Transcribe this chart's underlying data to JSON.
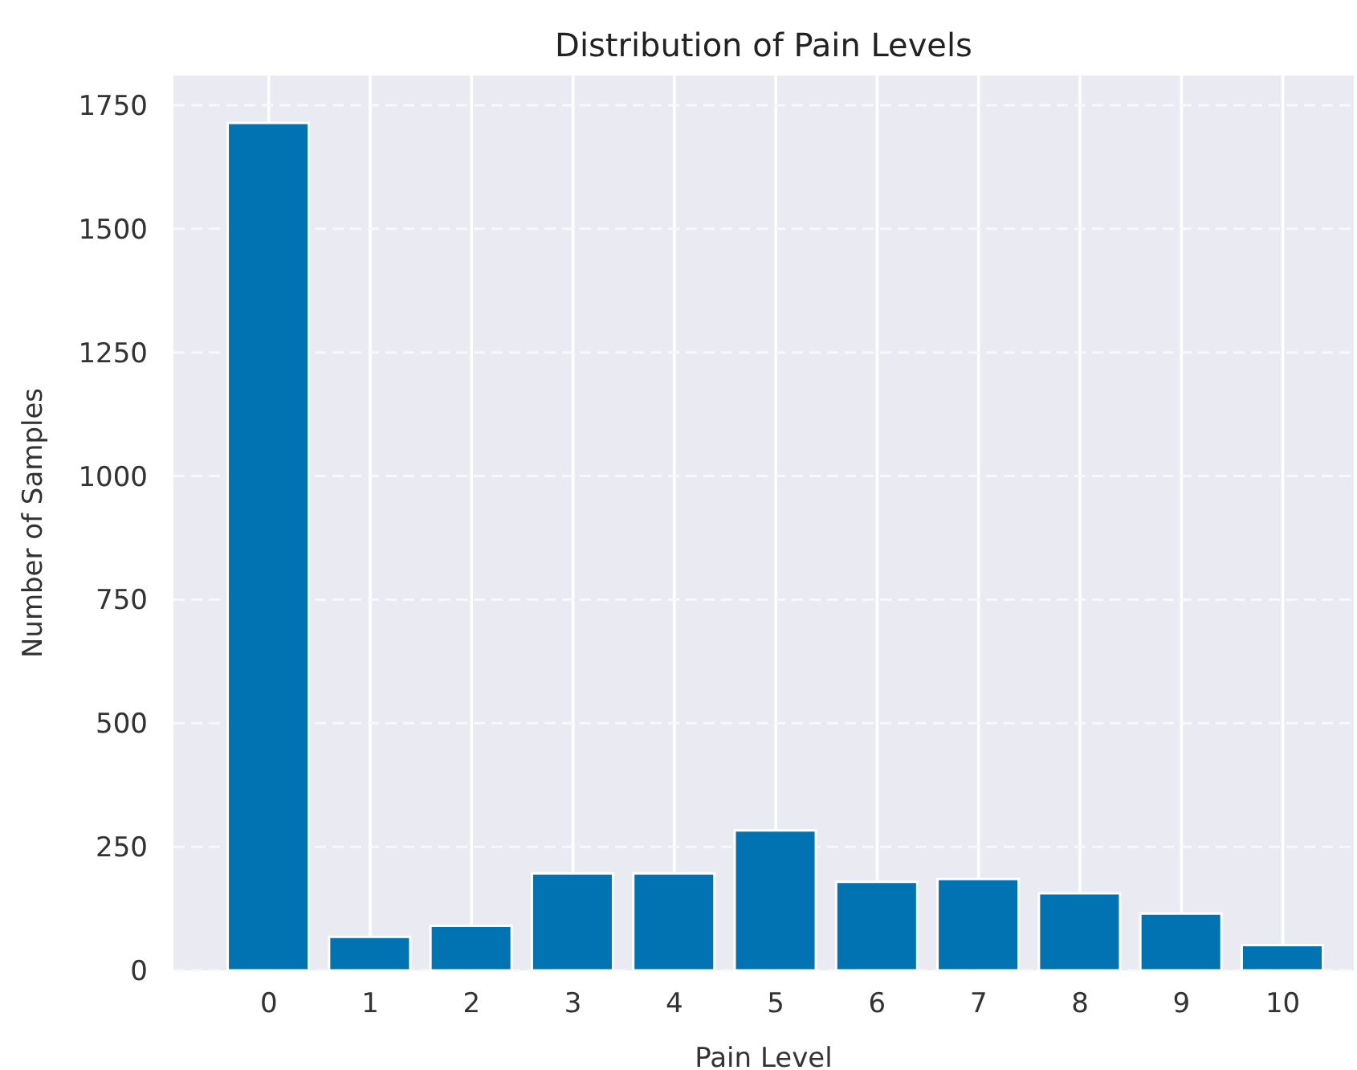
{
  "chart_data": {
    "type": "bar",
    "title": "Distribution of Pain Levels",
    "xlabel": "Pain Level",
    "ylabel": "Number of Samples",
    "x": [
      0,
      1,
      2,
      3,
      4,
      5,
      6,
      7,
      8,
      9,
      10
    ],
    "values": [
      1714,
      68,
      90,
      196,
      196,
      283,
      179,
      185,
      156,
      115,
      51
    ],
    "color": "#0173b2",
    "xlim": [
      -0.94,
      10.7
    ],
    "xticks": [
      0,
      1,
      2,
      3,
      4,
      5,
      6,
      7,
      8,
      9,
      10
    ],
    "ylim": [
      0,
      1810
    ],
    "yticks": [
      0,
      250,
      500,
      750,
      1000,
      1250,
      1500,
      1750
    ],
    "grid": true
  }
}
